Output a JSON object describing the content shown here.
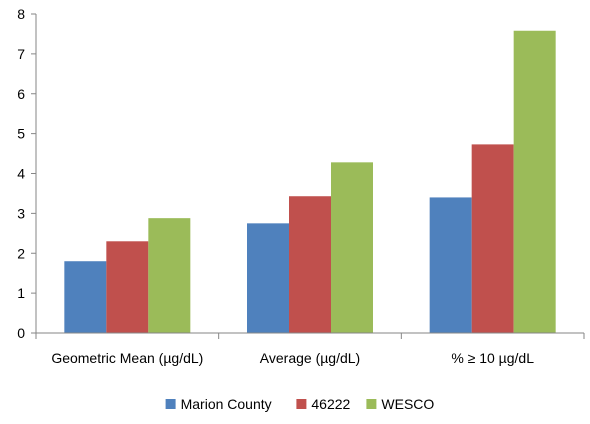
{
  "chart_data": {
    "type": "bar",
    "categories": [
      "Geometric Mean (µg/dL)",
      "Average (µg/dL)",
      "% ≥ 10 µg/dL"
    ],
    "series": [
      {
        "name": "Marion County",
        "color": "#4f81bd",
        "values": [
          1.8,
          2.75,
          3.4
        ]
      },
      {
        "name": "46222",
        "color": "#c0504d",
        "values": [
          2.3,
          3.43,
          4.73
        ]
      },
      {
        "name": "WESCO",
        "color": "#9bbb59",
        "values": [
          2.88,
          4.28,
          7.58
        ]
      }
    ],
    "ylim": [
      0,
      8
    ],
    "yticks": [
      0,
      1,
      2,
      3,
      4,
      5,
      6,
      7,
      8
    ],
    "title": "",
    "xlabel": "",
    "ylabel": "",
    "grid": false,
    "legend_position": "bottom"
  }
}
